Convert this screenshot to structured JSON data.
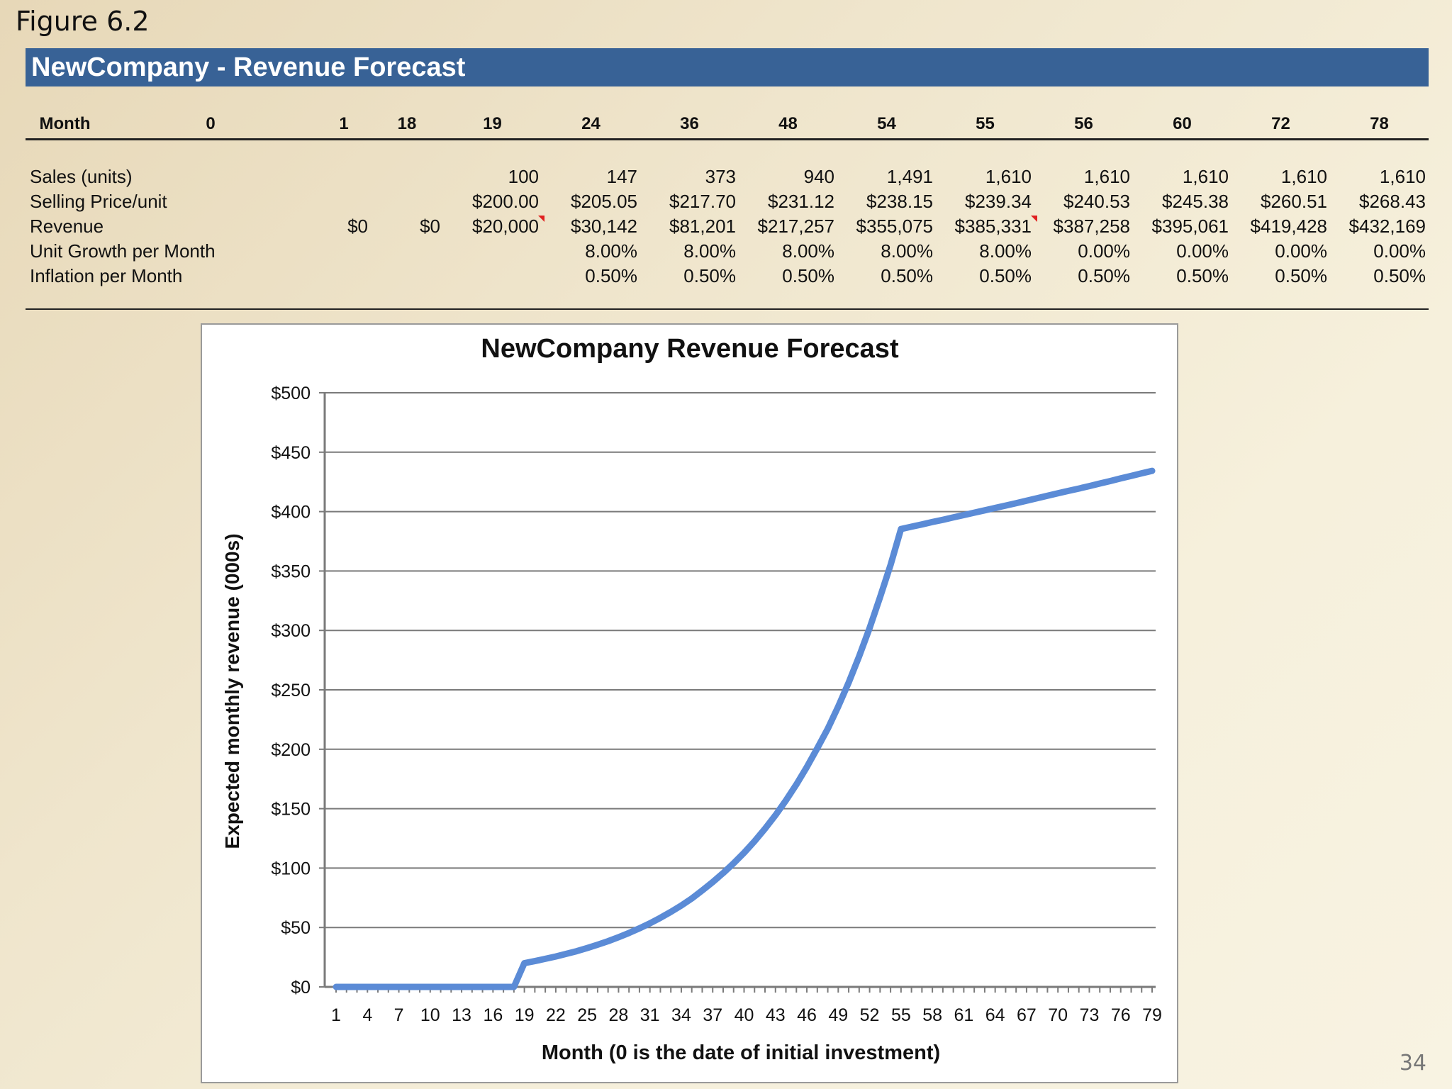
{
  "figure_label": "Figure 6.2",
  "header": {
    "title": "NewCompany - Revenue Forecast"
  },
  "table": {
    "header_label": "Month",
    "months": [
      "0",
      "1",
      "18",
      "19",
      "24",
      "36",
      "48",
      "54",
      "55",
      "56",
      "60",
      "72",
      "78"
    ],
    "rows": [
      {
        "label": "Sales (units)",
        "cells": [
          "",
          "",
          "",
          "100",
          "147",
          "373",
          "940",
          "1,491",
          "1,610",
          "1,610",
          "1,610",
          "1,610",
          "1,610"
        ]
      },
      {
        "label": "Selling Price/unit",
        "cells": [
          "",
          "",
          "",
          "$200.00",
          "$205.05",
          "$217.70",
          "$231.12",
          "$238.15",
          "$239.34",
          "$240.53",
          "$245.38",
          "$260.51",
          "$268.43"
        ]
      },
      {
        "label": "Revenue",
        "cells": [
          "",
          "$0",
          "$0",
          "$20,000",
          "$30,142",
          "$81,201",
          "$217,257",
          "$355,075",
          "$385,331",
          "$387,258",
          "$395,061",
          "$419,428",
          "$432,169"
        ]
      },
      {
        "label": "Unit Growth per Month",
        "cells": [
          "",
          "",
          "",
          "",
          "8.00%",
          "8.00%",
          "8.00%",
          "8.00%",
          "8.00%",
          "0.00%",
          "0.00%",
          "0.00%",
          "0.00%"
        ]
      },
      {
        "label": "Inflation per Month",
        "cells": [
          "",
          "",
          "",
          "",
          "0.50%",
          "0.50%",
          "0.50%",
          "0.50%",
          "0.50%",
          "0.50%",
          "0.50%",
          "0.50%",
          "0.50%"
        ]
      }
    ],
    "flagged_cells": [
      [
        2,
        3
      ],
      [
        2,
        8
      ]
    ],
    "flag_color": "#e02020"
  },
  "chart_data": {
    "type": "line",
    "title": "NewCompany Revenue Forecast",
    "xlabel": "Month (0 is the date of initial investment)",
    "ylabel": "Expected monthly revenue  (000s)",
    "x_tick_labels": [
      "1",
      "4",
      "7",
      "10",
      "13",
      "16",
      "19",
      "22",
      "25",
      "28",
      "31",
      "34",
      "37",
      "40",
      "43",
      "46",
      "49",
      "52",
      "55",
      "58",
      "61",
      "64",
      "67",
      "70",
      "73",
      "76",
      "79"
    ],
    "y_tick_labels": [
      "$0",
      "$50",
      "$100",
      "$150",
      "$200",
      "$250",
      "$300",
      "$350",
      "$400",
      "$450",
      "$500"
    ],
    "ylim": [
      0,
      500
    ],
    "xlim": [
      1,
      79
    ],
    "grid": true,
    "series_color": "#5b8bd6",
    "x": [
      1,
      2,
      3,
      4,
      5,
      6,
      7,
      8,
      9,
      10,
      11,
      12,
      13,
      14,
      15,
      16,
      17,
      18,
      19,
      20,
      21,
      22,
      23,
      24,
      25,
      26,
      27,
      28,
      29,
      30,
      31,
      32,
      33,
      34,
      35,
      36,
      37,
      38,
      39,
      40,
      41,
      42,
      43,
      44,
      45,
      46,
      47,
      48,
      49,
      50,
      51,
      52,
      53,
      54,
      55,
      56,
      57,
      58,
      59,
      60,
      61,
      62,
      63,
      64,
      65,
      66,
      67,
      68,
      69,
      70,
      71,
      72,
      73,
      74,
      75,
      76,
      77,
      78,
      79
    ],
    "values": [
      0,
      0,
      0,
      0,
      0,
      0,
      0,
      0,
      0,
      0,
      0,
      0,
      0,
      0,
      0,
      0,
      0,
      0,
      20.0,
      21.7,
      23.6,
      25.6,
      27.8,
      30.1,
      32.7,
      35.5,
      38.5,
      41.8,
      45.4,
      49.3,
      53.5,
      58.1,
      63.1,
      68.5,
      74.4,
      81.2,
      88.2,
      95.8,
      104.0,
      112.9,
      122.6,
      133.1,
      144.5,
      156.9,
      170.4,
      185.0,
      200.9,
      217.3,
      236.0,
      256.2,
      278.2,
      302.1,
      328.0,
      355.1,
      385.3,
      387.3,
      389.2,
      391.2,
      393.1,
      395.1,
      397.1,
      399.1,
      401.1,
      403.1,
      405.1,
      407.1,
      409.2,
      411.2,
      413.3,
      415.4,
      417.4,
      419.4,
      421.5,
      423.6,
      425.7,
      427.9,
      430.0,
      432.2,
      434.3
    ]
  },
  "page_number": "34"
}
